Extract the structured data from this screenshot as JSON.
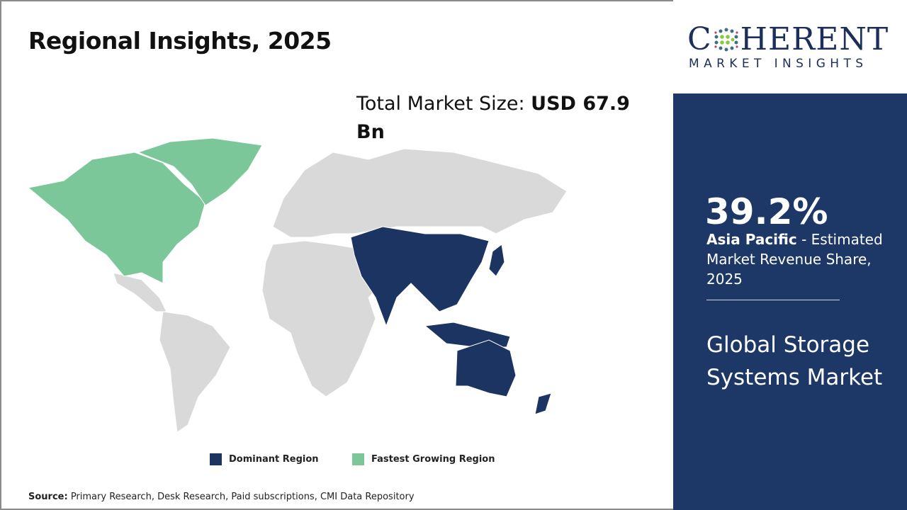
{
  "title": "Regional Insights, 2025",
  "total_market": {
    "label": "Total Market Size: ",
    "value": "USD 67.9 Bn"
  },
  "legend": [
    {
      "label": "Dominant Region",
      "color": "#1b3461"
    },
    {
      "label": "Fastest Growing Region",
      "color": "#7cc79a"
    }
  ],
  "map": {
    "dominant_region": "Asia Pacific",
    "fastest_growing_region": "North America",
    "other_color": "#d9d9d9"
  },
  "source": {
    "label": "Source:",
    "text": " Primary Research, Desk Research, Paid subscriptions, CMI Data Repository"
  },
  "logo": {
    "word_c": "C",
    "word_rest": "HERENT",
    "subtitle": "MARKET INSIGHTS"
  },
  "highlight": {
    "percent": "39.2%",
    "region": "Asia Pacific",
    "desc": " - Estimated Market Revenue Share, 2025"
  },
  "market_name": "Global Storage Systems Market",
  "colors": {
    "panel": "#1d3866",
    "dominant": "#1b3461",
    "fastest": "#7cc79a"
  }
}
